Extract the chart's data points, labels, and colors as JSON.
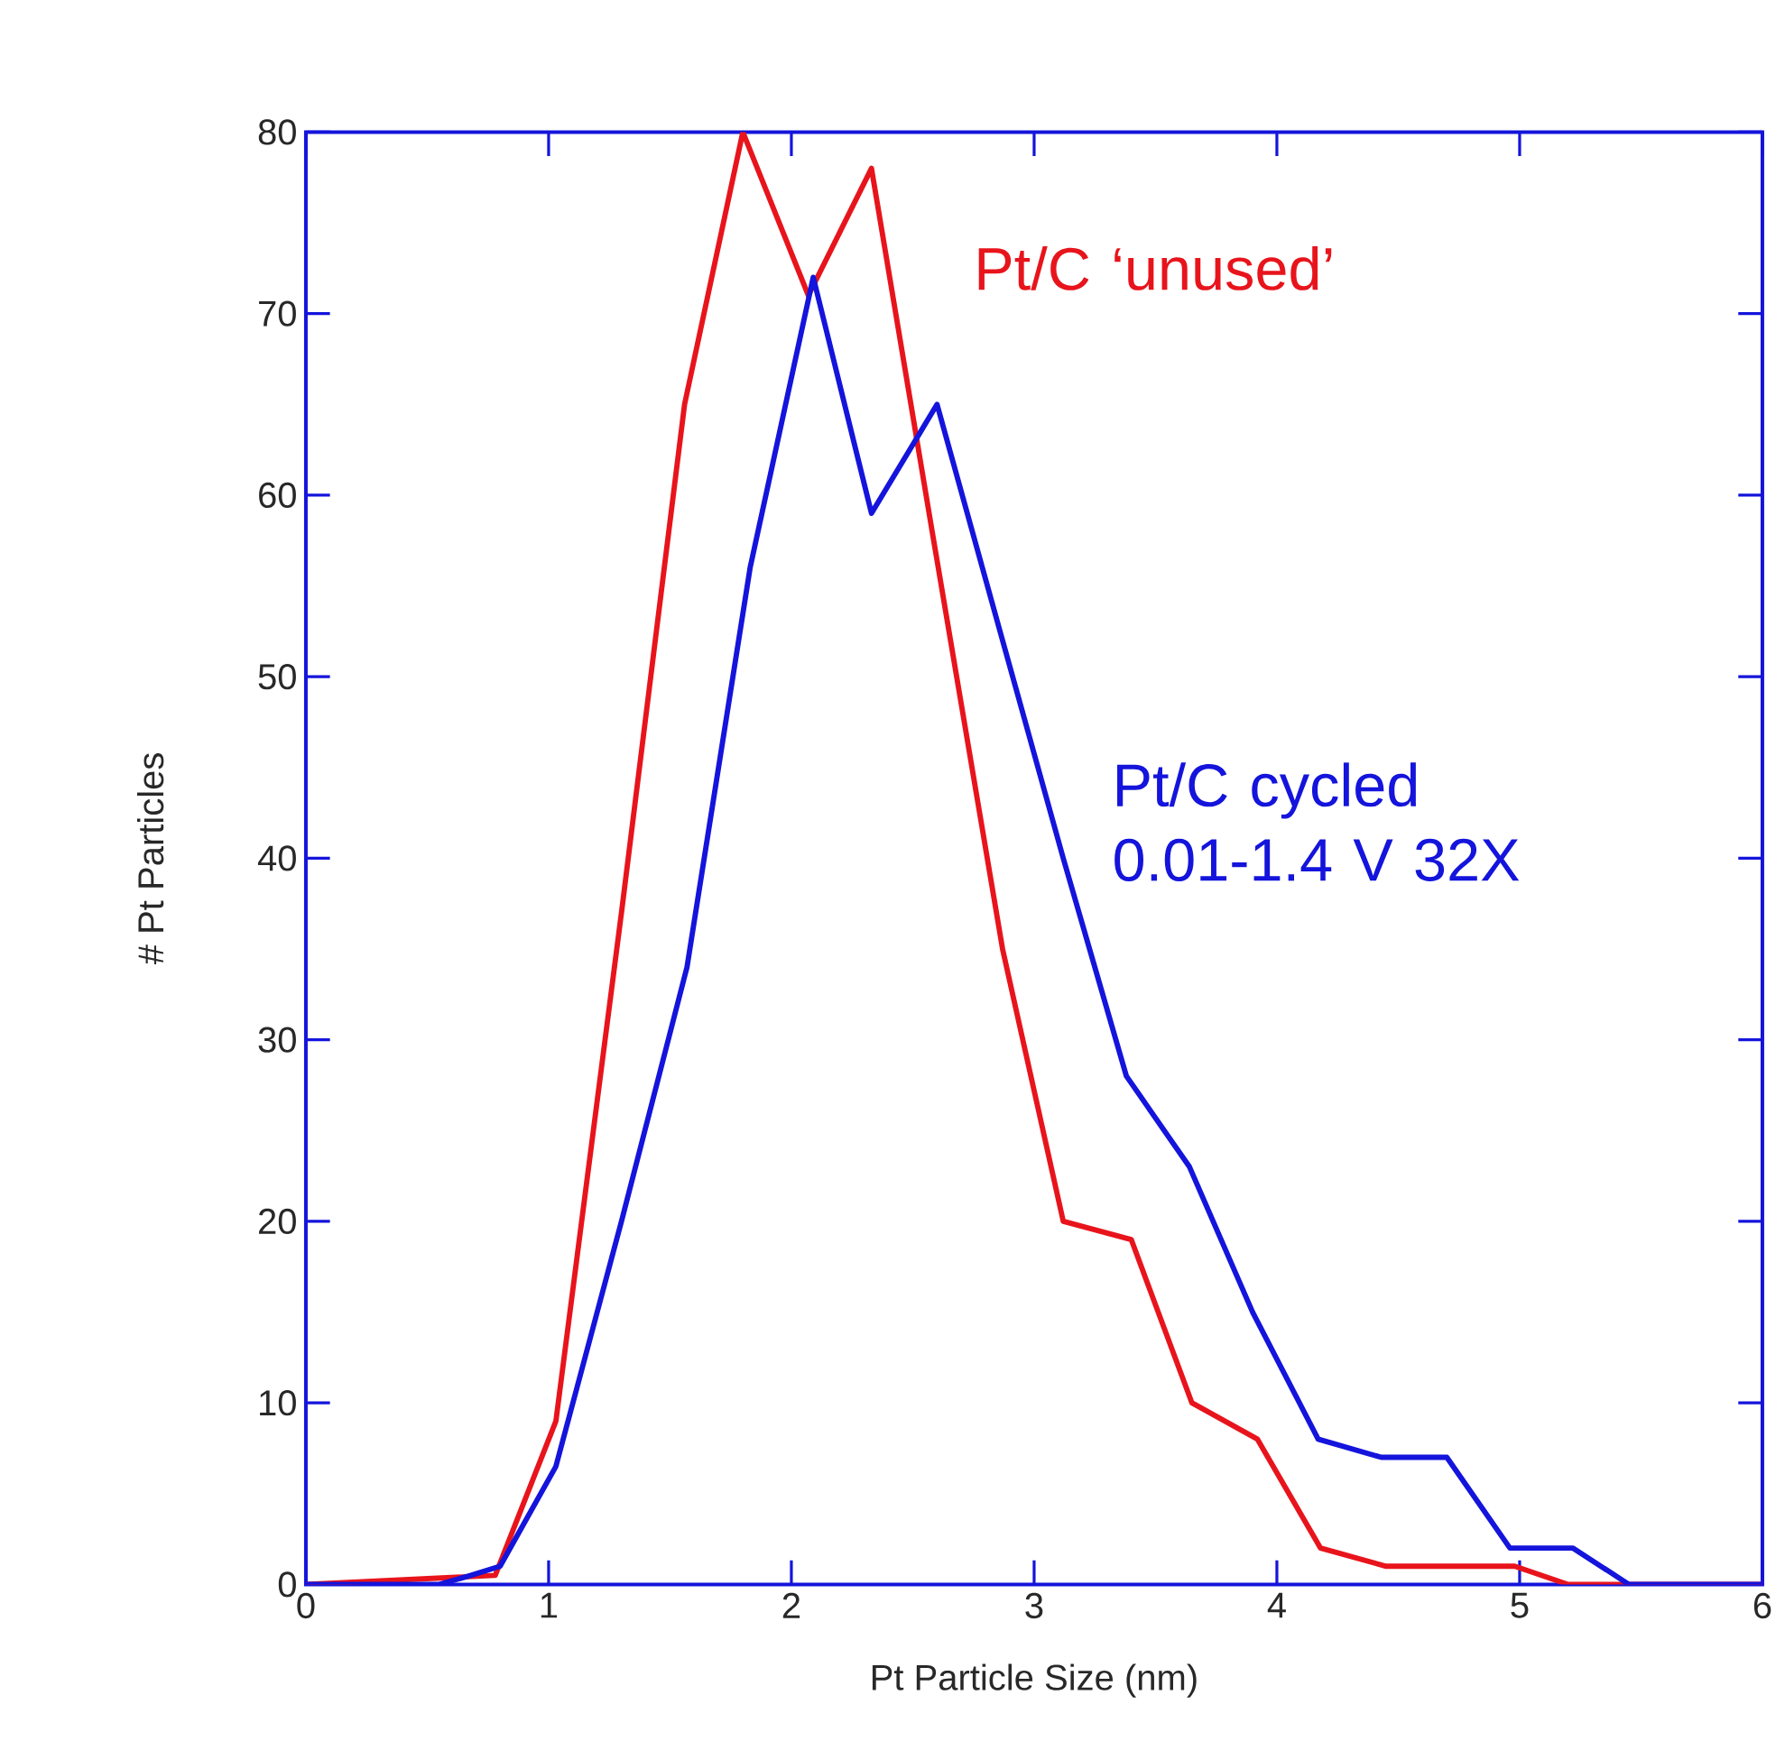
{
  "chart_data": {
    "type": "line",
    "xlabel": "Pt Particle Size (nm)",
    "ylabel": "# Pt Particles",
    "xlim": [
      0,
      6
    ],
    "ylim": [
      0,
      80
    ],
    "xticks": [
      0,
      1,
      2,
      3,
      4,
      5,
      6
    ],
    "yticks": [
      0,
      10,
      20,
      30,
      40,
      50,
      60,
      70,
      80
    ],
    "grid": false,
    "legend": false,
    "marker": "none",
    "line_style": "solid",
    "series": [
      {
        "name": "Pt/C ‘unused’",
        "color": "#e8141c",
        "x": [
          0,
          0.78,
          1.03,
          1.3,
          1.56,
          1.8,
          2.07,
          2.33,
          2.58,
          2.87,
          3.12,
          3.4,
          3.65,
          3.92,
          4.18,
          4.45,
          4.98,
          5.2,
          6
        ],
        "values": [
          0,
          0.5,
          9,
          37,
          65,
          80,
          71,
          78,
          58,
          35,
          20,
          19,
          10,
          8,
          2,
          1,
          1,
          0,
          0
        ]
      },
      {
        "name": "Pt/C cycled 0.01-1.4 V 32X",
        "color": "#1414dc",
        "x": [
          0,
          0.55,
          0.68,
          0.8,
          1.03,
          1.3,
          1.57,
          1.83,
          2.09,
          2.33,
          2.6,
          2.87,
          3.12,
          3.38,
          3.64,
          3.9,
          4.17,
          4.43,
          4.7,
          4.96,
          5.22,
          5.45,
          6
        ],
        "values": [
          0,
          0,
          0.5,
          1,
          6.5,
          20,
          34,
          56,
          72,
          59,
          65,
          52,
          40,
          28,
          23,
          15,
          8,
          7,
          7,
          2,
          2,
          0,
          0
        ]
      }
    ]
  }
}
